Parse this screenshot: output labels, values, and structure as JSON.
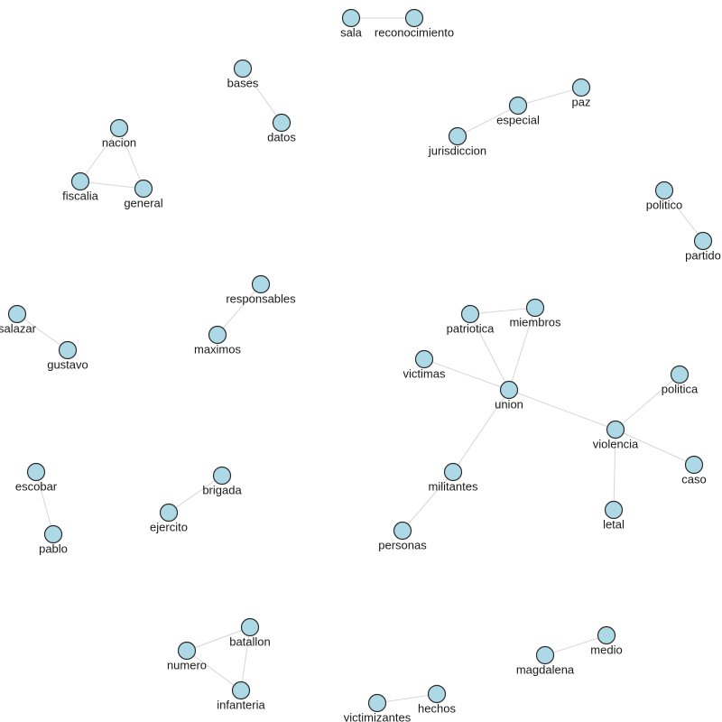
{
  "graph": {
    "node_color": "#add8e6",
    "edge_color": "#d6d6d6",
    "nodes": [
      {
        "id": "sala",
        "label": "sala"
      },
      {
        "id": "reconocimiento",
        "label": "reconocimiento"
      },
      {
        "id": "bases",
        "label": "bases"
      },
      {
        "id": "datos",
        "label": "datos"
      },
      {
        "id": "paz",
        "label": "paz"
      },
      {
        "id": "especial",
        "label": "especial"
      },
      {
        "id": "jurisdiccion",
        "label": "jurisdiccion"
      },
      {
        "id": "nacion",
        "label": "nacion"
      },
      {
        "id": "fiscalia",
        "label": "fiscalia"
      },
      {
        "id": "general",
        "label": "general"
      },
      {
        "id": "politico",
        "label": "politico"
      },
      {
        "id": "partido",
        "label": "partido"
      },
      {
        "id": "responsables",
        "label": "responsables"
      },
      {
        "id": "maximos",
        "label": "maximos"
      },
      {
        "id": "salazar",
        "label": "salazar"
      },
      {
        "id": "gustavo",
        "label": "gustavo"
      },
      {
        "id": "patriotica",
        "label": "patriotica"
      },
      {
        "id": "miembros",
        "label": "miembros"
      },
      {
        "id": "victimas",
        "label": "victimas"
      },
      {
        "id": "union",
        "label": "union"
      },
      {
        "id": "politica",
        "label": "politica"
      },
      {
        "id": "violencia",
        "label": "violencia"
      },
      {
        "id": "caso",
        "label": "caso"
      },
      {
        "id": "militantes",
        "label": "militantes"
      },
      {
        "id": "letal",
        "label": "letal"
      },
      {
        "id": "personas",
        "label": "personas"
      },
      {
        "id": "escobar",
        "label": "escobar"
      },
      {
        "id": "pablo",
        "label": "pablo"
      },
      {
        "id": "brigada",
        "label": "brigada"
      },
      {
        "id": "ejercito",
        "label": "ejercito"
      },
      {
        "id": "batallon",
        "label": "batallon"
      },
      {
        "id": "numero",
        "label": "numero"
      },
      {
        "id": "infanteria",
        "label": "infanteria"
      },
      {
        "id": "medio",
        "label": "medio"
      },
      {
        "id": "magdalena",
        "label": "magdalena"
      },
      {
        "id": "hechos",
        "label": "hechos"
      },
      {
        "id": "victimizantes",
        "label": "victimizantes"
      }
    ],
    "edges": [
      [
        "sala",
        "reconocimiento"
      ],
      [
        "bases",
        "datos"
      ],
      [
        "paz",
        "especial"
      ],
      [
        "especial",
        "jurisdiccion"
      ],
      [
        "nacion",
        "fiscalia"
      ],
      [
        "nacion",
        "general"
      ],
      [
        "fiscalia",
        "general"
      ],
      [
        "politico",
        "partido"
      ],
      [
        "responsables",
        "maximos"
      ],
      [
        "salazar",
        "gustavo"
      ],
      [
        "patriotica",
        "miembros"
      ],
      [
        "patriotica",
        "union"
      ],
      [
        "miembros",
        "union"
      ],
      [
        "victimas",
        "union"
      ],
      [
        "union",
        "violencia"
      ],
      [
        "union",
        "militantes"
      ],
      [
        "violencia",
        "politica"
      ],
      [
        "violencia",
        "caso"
      ],
      [
        "violencia",
        "letal"
      ],
      [
        "militantes",
        "personas"
      ],
      [
        "escobar",
        "pablo"
      ],
      [
        "brigada",
        "ejercito"
      ],
      [
        "batallon",
        "numero"
      ],
      [
        "batallon",
        "infanteria"
      ],
      [
        "numero",
        "infanteria"
      ],
      [
        "medio",
        "magdalena"
      ],
      [
        "hechos",
        "victimizantes"
      ]
    ]
  }
}
